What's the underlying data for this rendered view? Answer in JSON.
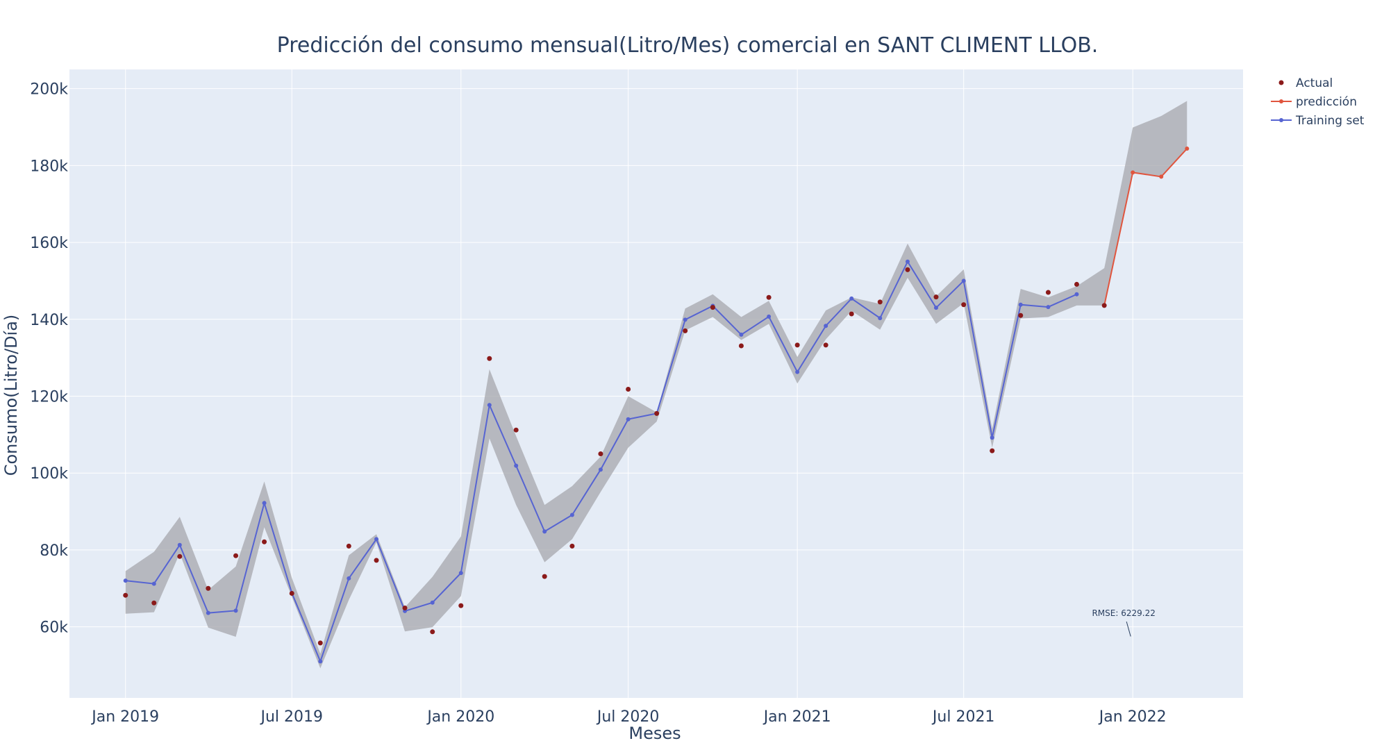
{
  "chart_data": {
    "type": "line",
    "title": "Predicción del consumo mensual(Litro/Mes) comercial en SANT CLIMENT LLOB.",
    "xlabel": "Meses",
    "ylabel": "Consumo(Litro/Día)",
    "xlim": [
      "2018-11-01",
      "2022-05-01"
    ],
    "ylim": [
      41500,
      205000
    ],
    "grid": true,
    "legend_position": "top-right",
    "x_ticks": [
      {
        "date": "2019-01-01",
        "label": "Jan 2019"
      },
      {
        "date": "2019-07-01",
        "label": "Jul 2019"
      },
      {
        "date": "2020-01-01",
        "label": "Jan 2020"
      },
      {
        "date": "2020-07-01",
        "label": "Jul 2020"
      },
      {
        "date": "2021-01-01",
        "label": "Jan 2021"
      },
      {
        "date": "2021-07-01",
        "label": "Jul 2021"
      },
      {
        "date": "2022-01-01",
        "label": "Jan 2022"
      }
    ],
    "y_ticks": [
      {
        "value": 60000,
        "label": "60k"
      },
      {
        "value": 80000,
        "label": "80k"
      },
      {
        "value": 100000,
        "label": "100k"
      },
      {
        "value": 120000,
        "label": "120k"
      },
      {
        "value": 140000,
        "label": "140k"
      },
      {
        "value": 160000,
        "label": "160k"
      },
      {
        "value": 180000,
        "label": "180k"
      },
      {
        "value": 200000,
        "label": "200k"
      }
    ],
    "series": [
      {
        "name": "Actual",
        "mode": "markers",
        "color": "#8b1a1a",
        "x": [
          "2019-01-01",
          "2019-02-01",
          "2019-03-01",
          "2019-04-01",
          "2019-05-01",
          "2019-06-01",
          "2019-07-01",
          "2019-08-01",
          "2019-09-01",
          "2019-10-01",
          "2019-11-01",
          "2019-12-01",
          "2020-01-01",
          "2020-02-01",
          "2020-03-01",
          "2020-04-01",
          "2020-05-01",
          "2020-06-01",
          "2020-07-01",
          "2020-08-01",
          "2020-09-01",
          "2020-10-01",
          "2020-11-01",
          "2020-12-01",
          "2021-01-01",
          "2021-02-01",
          "2021-03-01",
          "2021-04-01",
          "2021-05-01",
          "2021-06-01",
          "2021-07-01",
          "2021-08-01",
          "2021-09-01",
          "2021-10-01",
          "2021-11-01",
          "2021-12-01"
        ],
        "y": [
          68200,
          66200,
          78300,
          70000,
          78500,
          82100,
          68700,
          55800,
          81000,
          77300,
          64900,
          58700,
          65500,
          129800,
          111200,
          73100,
          81000,
          105000,
          121800,
          115500,
          137000,
          143100,
          133100,
          145700,
          133300,
          133300,
          141400,
          144500,
          152900,
          145800,
          143800,
          105800,
          141000,
          147000,
          149100,
          143600
        ]
      },
      {
        "name": "predicción",
        "mode": "lines+markers",
        "color": "#e0553e",
        "x": [
          "2021-12-01",
          "2022-01-01",
          "2022-02-01",
          "2022-03-01"
        ],
        "y": [
          143600,
          178200,
          177100,
          184400
        ]
      },
      {
        "name": "Training set",
        "mode": "lines+markers",
        "color": "#5664d2",
        "x": [
          "2019-01-01",
          "2019-02-01",
          "2019-03-01",
          "2019-04-01",
          "2019-05-01",
          "2019-06-01",
          "2019-07-01",
          "2019-08-01",
          "2019-09-01",
          "2019-10-01",
          "2019-11-01",
          "2019-12-01",
          "2020-01-01",
          "2020-02-01",
          "2020-03-01",
          "2020-04-01",
          "2020-05-01",
          "2020-06-01",
          "2020-07-01",
          "2020-08-01",
          "2020-09-01",
          "2020-10-01",
          "2020-11-01",
          "2020-12-01",
          "2021-01-01",
          "2021-02-01",
          "2021-03-01",
          "2021-04-01",
          "2021-05-01",
          "2021-06-01",
          "2021-07-01",
          "2021-08-01",
          "2021-09-01",
          "2021-10-01",
          "2021-11-01"
        ],
        "y": [
          72000,
          71200,
          81300,
          63600,
          64200,
          92200,
          68800,
          51000,
          72600,
          82800,
          64100,
          66300,
          74000,
          117700,
          101900,
          84800,
          89100,
          100900,
          114000,
          115500,
          139900,
          143500,
          136000,
          140700,
          126300,
          138300,
          145400,
          140300,
          155000,
          143000,
          150000,
          109200,
          143800,
          143200,
          146500
        ]
      }
    ],
    "confidence_band": {
      "color": "#a5a7ac",
      "x": [
        "2019-01-01",
        "2019-02-01",
        "2019-03-01",
        "2019-04-01",
        "2019-05-01",
        "2019-06-01",
        "2019-07-01",
        "2019-08-01",
        "2019-09-01",
        "2019-10-01",
        "2019-11-01",
        "2019-12-01",
        "2020-01-01",
        "2020-02-01",
        "2020-03-01",
        "2020-04-01",
        "2020-05-01",
        "2020-06-01",
        "2020-07-01",
        "2020-08-01",
        "2020-09-01",
        "2020-10-01",
        "2020-11-01",
        "2020-12-01",
        "2021-01-01",
        "2021-02-01",
        "2021-03-01",
        "2021-04-01",
        "2021-05-01",
        "2021-06-01",
        "2021-07-01",
        "2021-08-01",
        "2021-09-01",
        "2021-10-01",
        "2021-11-01",
        "2021-12-01",
        "2022-01-01",
        "2022-02-01",
        "2022-03-01"
      ],
      "upper": [
        74500,
        79500,
        88600,
        69600,
        75700,
        97800,
        72700,
        53000,
        78600,
        84100,
        65100,
        73000,
        83500,
        127000,
        109600,
        91700,
        96600,
        104300,
        120000,
        115800,
        142800,
        146500,
        140600,
        144800,
        130200,
        142300,
        145700,
        144000,
        159700,
        146000,
        153000,
        111500,
        147900,
        145700,
        148600,
        153300,
        189900,
        192900,
        196800
      ],
      "lower": [
        63400,
        63800,
        79100,
        59800,
        57400,
        85900,
        67800,
        49200,
        67000,
        82000,
        58800,
        59900,
        68000,
        109000,
        91700,
        76800,
        82800,
        95100,
        106600,
        113400,
        137100,
        140600,
        134600,
        138800,
        123300,
        134800,
        142200,
        137300,
        150800,
        138800,
        144200,
        106600,
        140200,
        140600,
        143600,
        143600,
        178200,
        177100,
        184400
      ]
    },
    "annotations": [
      {
        "text": "RMSE: 6229.22",
        "x": "2021-12-01",
        "y": 62800,
        "arrow_to": {
          "x": "2021-12-01",
          "y": 57500
        }
      }
    ]
  }
}
